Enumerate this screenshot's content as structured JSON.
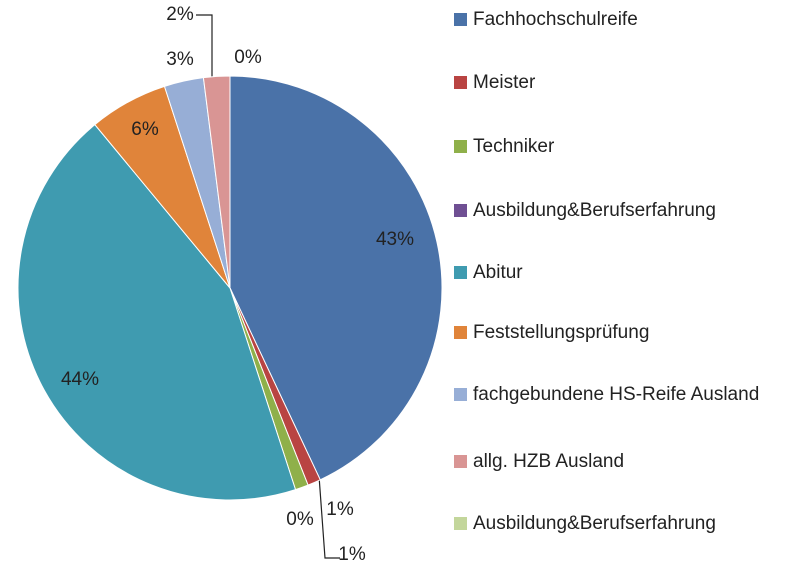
{
  "chart_data": {
    "type": "pie",
    "categories": [
      "Fachhochschulreife",
      "Meister",
      "Techniker",
      "Ausbildung&Berufserfahrung",
      "Abitur",
      "Feststellungsprüfung",
      "fachgebundene HS-Reife Ausland",
      "allg. HZB Ausland",
      "Ausbildung&Berufserfahrung"
    ],
    "values": [
      43,
      1,
      1,
      0,
      44,
      6,
      3,
      2,
      0
    ],
    "value_labels": [
      "43%",
      "1%",
      "1%",
      "0%",
      "44%",
      "6%",
      "3%",
      "2%",
      "0%"
    ],
    "colors": [
      "#4a72a8",
      "#b94442",
      "#8fb04a",
      "#6f4f93",
      "#3f9bb0",
      "#e0843a",
      "#97aed6",
      "#d99594",
      "#c3d69b"
    ],
    "legend": "right"
  }
}
